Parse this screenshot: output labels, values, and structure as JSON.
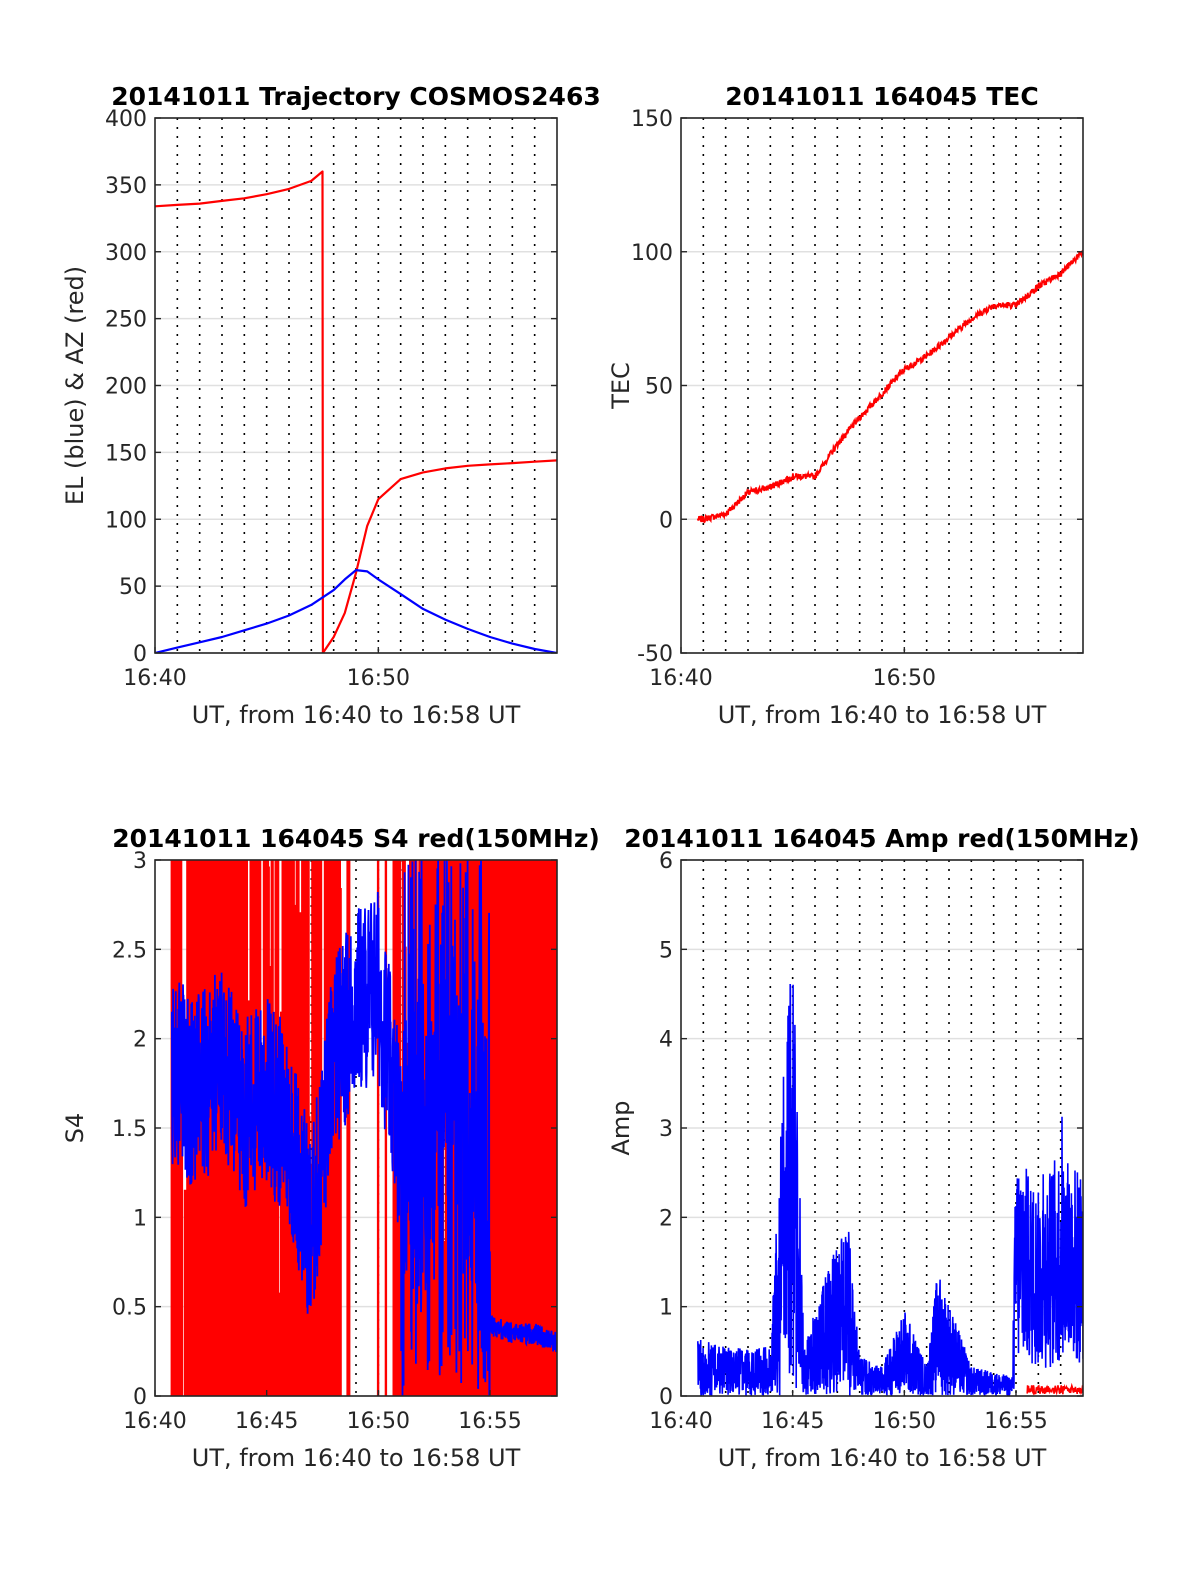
{
  "figure": {
    "panels": [
      {
        "title": "20141011 Trajectory COSMOS2463"
      },
      {
        "title": "20141011 164045 TEC"
      },
      {
        "title": "20141011 164045 S4 red(150MHz)"
      },
      {
        "title": "20141011 164045 Amp red(150MHz)"
      }
    ]
  },
  "chart_data": [
    {
      "type": "line",
      "title": "20141011 Trajectory COSMOS2463",
      "xlabel": "UT, from 16:40 to 16:58 UT",
      "ylabel": "EL (blue) & AZ (red)",
      "xlim": [
        "16:40",
        "16:58"
      ],
      "xticks": [
        "16:40",
        "16:50"
      ],
      "ylim": [
        0,
        400
      ],
      "yticks": [
        "0",
        "50",
        "100",
        "150",
        "200",
        "250",
        "300",
        "350",
        "400"
      ],
      "grid": {
        "vertical_dotted_minutes": 1,
        "horizontal": true
      },
      "series": [
        {
          "color": "#ff0000",
          "x": [
            "16:40:00",
            "16:41:00",
            "16:42:00",
            "16:43:00",
            "16:44:00",
            "16:45:00",
            "16:46:00",
            "16:47:00",
            "16:47:30",
            "16:47:31",
            "16:48:00",
            "16:48:30",
            "16:49:00",
            "16:49:30",
            "16:50:00",
            "16:51:00",
            "16:52:00",
            "16:53:00",
            "16:54:00",
            "16:55:00",
            "16:56:00",
            "16:57:00",
            "16:58:00"
          ],
          "values": [
            334,
            335,
            336,
            338,
            340,
            343,
            347,
            353,
            360,
            0,
            12,
            30,
            60,
            95,
            115,
            130,
            135,
            138,
            140,
            141,
            142,
            143,
            144
          ]
        },
        {
          "color": "#0000ff",
          "x": [
            "16:40:00",
            "16:41:00",
            "16:42:00",
            "16:43:00",
            "16:44:00",
            "16:45:00",
            "16:46:00",
            "16:47:00",
            "16:48:00",
            "16:48:30",
            "16:49:00",
            "16:49:30",
            "16:50:00",
            "16:51:00",
            "16:52:00",
            "16:53:00",
            "16:54:00",
            "16:55:00",
            "16:56:00",
            "16:57:00",
            "16:58:00"
          ],
          "values": [
            0,
            4,
            8,
            12,
            17,
            22,
            28,
            36,
            47,
            55,
            62,
            61,
            55,
            44,
            33,
            25,
            18,
            12,
            7,
            3,
            0
          ]
        }
      ]
    },
    {
      "type": "line",
      "title": "20141011 164045 TEC",
      "xlabel": "UT, from 16:40 to 16:58 UT",
      "ylabel": "TEC",
      "xlim": [
        "16:40",
        "16:58"
      ],
      "xticks": [
        "16:40",
        "16:50"
      ],
      "ylim": [
        -50,
        150
      ],
      "yticks": [
        "-50",
        "0",
        "50",
        "100",
        "150"
      ],
      "grid": {
        "vertical_dotted_minutes": 1,
        "horizontal": true
      },
      "series": [
        {
          "color": "#ff0000",
          "x": [
            "16:40:45",
            "16:41:00",
            "16:42:00",
            "16:43:00",
            "16:44:00",
            "16:45:00",
            "16:46:00",
            "16:47:00",
            "16:48:00",
            "16:49:00",
            "16:50:00",
            "16:51:00",
            "16:52:00",
            "16:53:00",
            "16:54:00",
            "16:55:00",
            "16:56:00",
            "16:57:00",
            "16:58:00"
          ],
          "values": [
            0,
            0,
            2,
            10,
            12,
            16,
            16,
            28,
            38,
            47,
            56,
            61,
            68,
            75,
            80,
            80,
            87,
            92,
            100
          ]
        }
      ]
    },
    {
      "type": "line",
      "title": "20141011 164045 S4 red(150MHz)",
      "xlabel": "UT, from 16:40 to 16:58 UT",
      "ylabel": "S4",
      "xlim": [
        "16:40",
        "16:58"
      ],
      "xticks": [
        "16:40",
        "16:45",
        "16:50",
        "16:55"
      ],
      "ylim": [
        0,
        3
      ],
      "yticks": [
        "0",
        "0.5",
        "1",
        "1.5",
        "2",
        "2.5",
        "3"
      ],
      "grid": {
        "vertical_dotted_minutes": 1,
        "horizontal": true
      },
      "series": [
        {
          "color": "#ff0000",
          "x": [
            "16:40:45",
            "16:58:00"
          ],
          "values": [
            0,
            3
          ],
          "note_style": "dense vertical fill between 0 and 3 across most of range"
        },
        {
          "color": "#0000ff",
          "x": [
            "16:40:45",
            "16:42:00",
            "16:43:00",
            "16:44:00",
            "16:45:00",
            "16:46:00",
            "16:47:00",
            "16:48:00",
            "16:49:00",
            "16:50:00",
            "16:51:00",
            "16:52:00",
            "16:53:00",
            "16:54:00",
            "16:55:00",
            "16:56:00",
            "16:57:00",
            "16:58:00"
          ],
          "values": [
            1.8,
            1.7,
            1.9,
            1.6,
            1.7,
            1.5,
            0.9,
            1.9,
            2.2,
            2.3,
            1.4,
            1.0,
            2.0,
            1.4,
            0.4,
            0.35,
            0.35,
            0.3
          ]
        }
      ]
    },
    {
      "type": "line",
      "title": "20141011 164045 Amp red(150MHz)",
      "xlabel": "UT, from 16:40 to 16:58 UT",
      "ylabel": "Amp",
      "xlim": [
        "16:40",
        "16:58"
      ],
      "xticks": [
        "16:40",
        "16:45",
        "16:50",
        "16:55"
      ],
      "ylim": [
        0,
        6
      ],
      "yticks": [
        "0",
        "1",
        "2",
        "3",
        "4",
        "5",
        "6"
      ],
      "grid": {
        "vertical_dotted_minutes": 1,
        "horizontal": true
      },
      "series": [
        {
          "color": "#0000ff",
          "x": [
            "16:40:45",
            "16:42:00",
            "16:44:00",
            "16:44:45",
            "16:45:05",
            "16:45:30",
            "16:47:00",
            "16:47:30",
            "16:48:00",
            "16:49:00",
            "16:50:00",
            "16:51:00",
            "16:51:30",
            "16:53:00",
            "16:54:50",
            "16:55:00",
            "16:56:00",
            "16:57:00",
            "16:58:00"
          ],
          "values": [
            0.6,
            0.5,
            0.5,
            4.05,
            4.45,
            0.5,
            1.6,
            1.7,
            0.4,
            0.3,
            0.9,
            0.3,
            1.3,
            0.3,
            0.2,
            2.8,
            2.3,
            2.8,
            2.5
          ]
        },
        {
          "color": "#ff0000",
          "x": [
            "16:55:30",
            "16:58:00"
          ],
          "values": [
            0.05,
            0.08
          ]
        }
      ]
    }
  ]
}
